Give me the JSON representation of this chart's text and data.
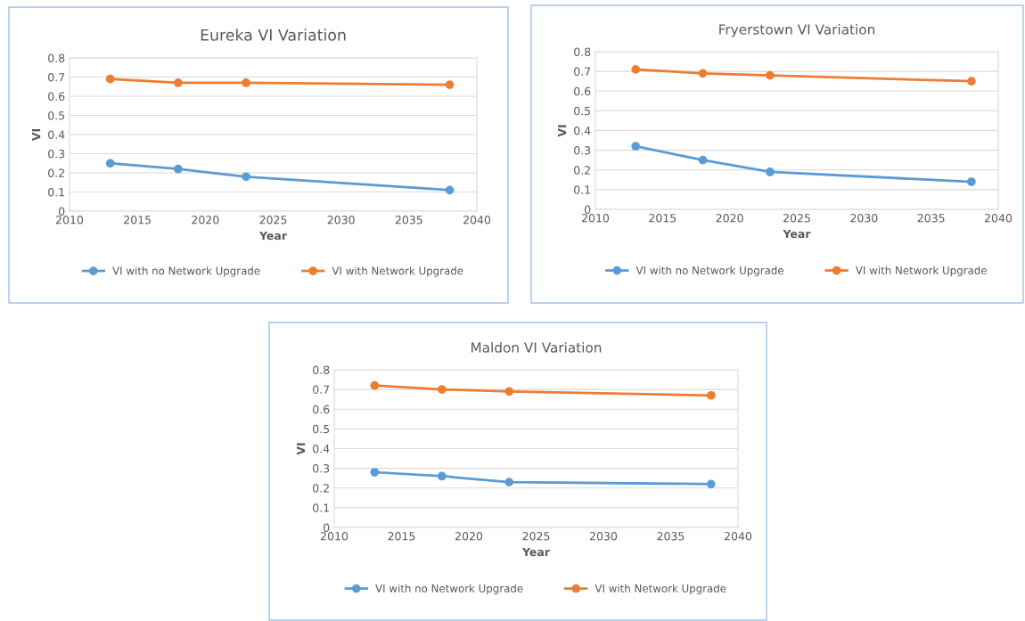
{
  "chart_data": [
    {
      "type": "line",
      "title": "Eureka VI Variation",
      "xlabel": "Year",
      "ylabel": "VI",
      "x": [
        2013,
        2018,
        2023,
        2038
      ],
      "xlim": [
        2010,
        2040
      ],
      "xticks": [
        2010,
        2015,
        2020,
        2025,
        2030,
        2035,
        2040
      ],
      "ylim": [
        0,
        0.8
      ],
      "yticks": [
        0,
        0.1,
        0.2,
        0.3,
        0.4,
        0.5,
        0.6,
        0.7,
        0.8
      ],
      "grid": "y",
      "legend": "bottom",
      "marker": "circle",
      "line_style": "solid",
      "series": [
        {
          "name": "VI with no Network Upgrade",
          "color": "#5b9bd5",
          "values": [
            0.25,
            0.22,
            0.18,
            0.11
          ]
        },
        {
          "name": "VI with Network Upgrade",
          "color": "#ed7d31",
          "values": [
            0.69,
            0.67,
            0.67,
            0.66
          ]
        }
      ]
    },
    {
      "type": "line",
      "title": "Fryerstown VI Variation",
      "xlabel": "Year",
      "ylabel": "VI",
      "x": [
        2013,
        2018,
        2023,
        2038
      ],
      "xlim": [
        2010,
        2040
      ],
      "xticks": [
        2010,
        2015,
        2020,
        2025,
        2030,
        2035,
        2040
      ],
      "ylim": [
        0,
        0.8
      ],
      "yticks": [
        0,
        0.1,
        0.2,
        0.3,
        0.4,
        0.5,
        0.6,
        0.7,
        0.8
      ],
      "grid": "y",
      "legend": "bottom",
      "marker": "circle",
      "line_style": "solid",
      "series": [
        {
          "name": "VI with no Network Upgrade",
          "color": "#5b9bd5",
          "values": [
            0.32,
            0.25,
            0.19,
            0.14
          ]
        },
        {
          "name": "VI with Network Upgrade",
          "color": "#ed7d31",
          "values": [
            0.71,
            0.69,
            0.68,
            0.65
          ]
        }
      ]
    },
    {
      "type": "line",
      "title": "Maldon VI Variation",
      "xlabel": "Year",
      "ylabel": "VI",
      "x": [
        2013,
        2018,
        2023,
        2038
      ],
      "xlim": [
        2010,
        2040
      ],
      "xticks": [
        2010,
        2015,
        2020,
        2025,
        2030,
        2035,
        2040
      ],
      "ylim": [
        0,
        0.8
      ],
      "yticks": [
        0,
        0.1,
        0.2,
        0.3,
        0.4,
        0.5,
        0.6,
        0.7,
        0.8
      ],
      "grid": "y",
      "legend": "bottom",
      "marker": "circle",
      "line_style": "solid",
      "series": [
        {
          "name": "VI with no Network Upgrade",
          "color": "#5b9bd5",
          "values": [
            0.28,
            0.26,
            0.23,
            0.22
          ]
        },
        {
          "name": "VI with Network Upgrade",
          "color": "#ed7d31",
          "values": [
            0.72,
            0.7,
            0.69,
            0.67
          ]
        }
      ]
    }
  ]
}
